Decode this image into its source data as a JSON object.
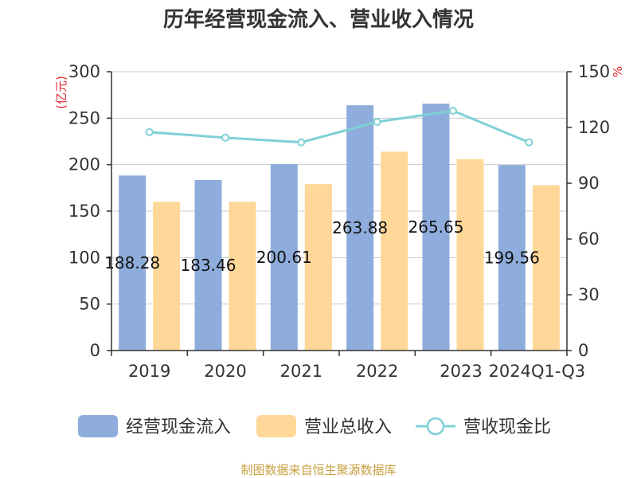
{
  "chart_data": {
    "type": "bar",
    "title": "历年经营现金流入、营业收入情况",
    "categories": [
      "2019",
      "2020",
      "2021",
      "2022",
      "2023",
      "2024Q1-Q3"
    ],
    "series": [
      {
        "name": "经营现金流入",
        "type": "bar",
        "axis": "left",
        "color": "#8eaddc",
        "values": [
          188.28,
          183.46,
          200.61,
          263.88,
          265.65,
          199.56
        ],
        "data_labels": [
          "188.28",
          "183.46",
          "200.61",
          "263.88",
          "265.65",
          "199.56"
        ]
      },
      {
        "name": "营业总收入",
        "type": "bar",
        "axis": "left",
        "color": "#ffd899",
        "values": [
          160,
          160,
          179,
          214,
          206,
          178
        ]
      },
      {
        "name": "营收现金比",
        "type": "line",
        "axis": "right",
        "color": "#7fd1d6",
        "values": [
          117.5,
          114.5,
          112,
          123,
          129,
          112
        ]
      }
    ],
    "y_left": {
      "unit": "(亿元)",
      "range": [
        0,
        300
      ],
      "ticks": [
        "0",
        "50",
        "100",
        "150",
        "200",
        "250",
        "300"
      ]
    },
    "y_right": {
      "unit": "%",
      "range": [
        0,
        150
      ],
      "ticks": [
        "0",
        "30",
        "60",
        "90",
        "120",
        "150"
      ]
    },
    "grid": true,
    "legend": {
      "placement": "bottom"
    },
    "source": "制图数据来自恒生聚源数据库"
  }
}
